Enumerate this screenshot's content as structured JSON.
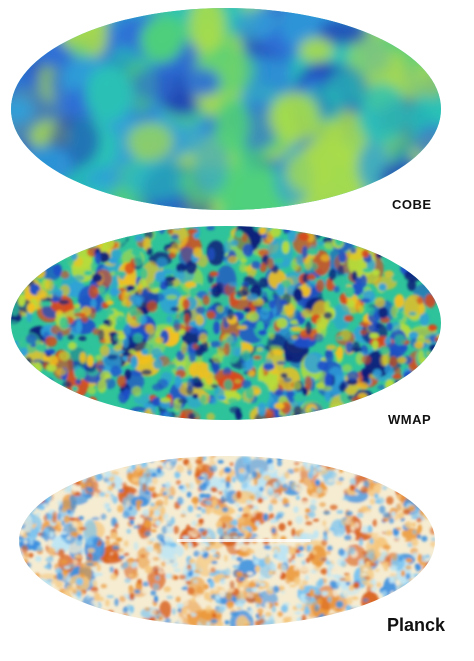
{
  "maps": [
    {
      "id": "cobe",
      "label": "COBE",
      "palette": [
        "#1f3fb5",
        "#2e6fd6",
        "#2f9fd9",
        "#29c2b5",
        "#4fcf7b",
        "#a9dc4a"
      ],
      "speckle": "coarse"
    },
    {
      "id": "wmap",
      "label": "WMAP",
      "palette": [
        "#0b1f7a",
        "#1f4fc7",
        "#2fa0d8",
        "#2ec39a",
        "#b7dc3a",
        "#f0c020",
        "#d84a1c"
      ],
      "speckle": "medium"
    },
    {
      "id": "planck",
      "label": "Planck",
      "palette": [
        "#3a8fe0",
        "#7cc4f0",
        "#bfe6f4",
        "#f5ecd2",
        "#f5c77e",
        "#ec9a3c",
        "#d9621e"
      ],
      "speckle": "fine"
    }
  ]
}
